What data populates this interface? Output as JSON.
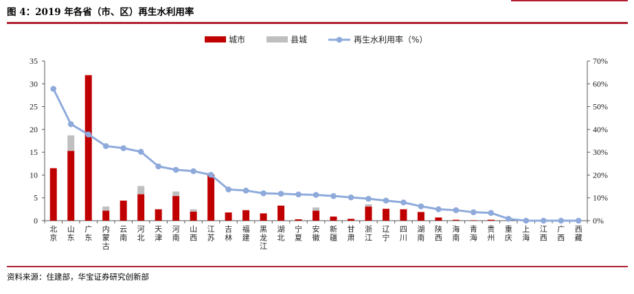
{
  "header": {
    "title": "图 4：2019 年各省（市、区）再生水利用率"
  },
  "footer": {
    "source": "资料来源：住建部，华宝证券研究创新部"
  },
  "colors": {
    "accent": "#b01c2e",
    "city_bar": "#c00000",
    "county_bar": "#bfbfbf",
    "line": "#8eaadb"
  },
  "chart_data": {
    "type": "bar",
    "title": "",
    "xlabel": "",
    "ylabel": "",
    "categories": [
      "北京",
      "山东",
      "广东",
      "内蒙古",
      "云南",
      "河北",
      "天津",
      "河南",
      "山西",
      "江苏",
      "吉林",
      "福建",
      "黑龙江",
      "湖北",
      "宁夏",
      "安徽",
      "新疆",
      "甘肃",
      "浙江",
      "辽宁",
      "四川",
      "湖南",
      "陕西",
      "海南",
      "青海",
      "贵州",
      "重庆",
      "上海",
      "江西",
      "广西",
      "西藏"
    ],
    "series": [
      {
        "name": "城市",
        "kind": "bar",
        "axis": "left",
        "values": [
          11.5,
          15.3,
          31.9,
          2.2,
          4.4,
          5.8,
          2.5,
          5.4,
          2.0,
          10.1,
          1.8,
          2.3,
          1.6,
          3.3,
          0.3,
          2.2,
          0.9,
          0.4,
          3.1,
          2.6,
          2.5,
          1.9,
          0.7,
          0.2,
          0.1,
          0.2,
          0.0,
          0.0,
          0.0,
          0.0,
          0.0
        ]
      },
      {
        "name": "县城",
        "kind": "bar",
        "axis": "left",
        "values": [
          0.0,
          3.4,
          0.0,
          0.9,
          0.0,
          1.8,
          0.0,
          1.0,
          0.5,
          0.0,
          0.0,
          0.0,
          0.0,
          0.0,
          0.0,
          0.7,
          0.0,
          0.0,
          0.5,
          0.0,
          0.0,
          0.0,
          0.0,
          0.0,
          0.0,
          0.0,
          0.0,
          0.0,
          0.0,
          0.0,
          0.0
        ]
      },
      {
        "name": "再生水利用率（%）",
        "kind": "line",
        "axis": "right",
        "values": [
          57.8,
          42.3,
          37.8,
          32.7,
          31.8,
          30.2,
          23.8,
          22.3,
          21.7,
          20.1,
          13.7,
          13.2,
          12.0,
          11.8,
          11.5,
          11.3,
          10.8,
          10.2,
          9.6,
          8.8,
          8.0,
          6.3,
          5.0,
          4.6,
          3.7,
          3.4,
          0.8,
          0.0,
          0.0,
          0.0,
          0.0
        ]
      }
    ],
    "stacked": true,
    "ylim": [
      0,
      35
    ],
    "yticks": [
      "0",
      "5",
      "10",
      "15",
      "20",
      "25",
      "30",
      "35"
    ],
    "y2lim": [
      0,
      70
    ],
    "y2ticks": [
      "0%",
      "10%",
      "20%",
      "30%",
      "40%",
      "50%",
      "60%",
      "70%"
    ],
    "grid": false,
    "legend_position": "top-center"
  }
}
